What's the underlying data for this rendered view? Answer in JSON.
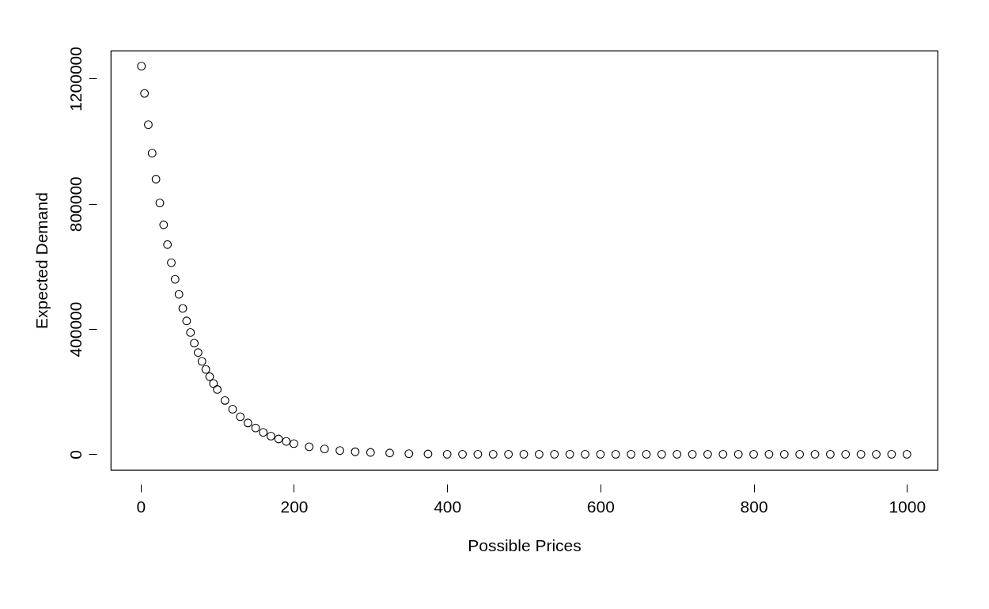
{
  "chart_data": {
    "type": "scatter",
    "xlabel": "Possible Prices",
    "ylabel": "Expected Demand",
    "marker": "circle",
    "grid": false,
    "xlim": [
      -39,
      1040
    ],
    "ylim": [
      -49600,
      1289600
    ],
    "xticks": [
      0,
      200,
      400,
      600,
      800,
      1000
    ],
    "yticks": [
      0,
      400000,
      800000,
      1200000
    ],
    "series": [
      {
        "color": "#000000",
        "x": [
          1,
          5,
          10,
          15,
          20,
          25,
          30,
          35,
          40,
          45,
          50,
          55,
          60,
          65,
          70,
          75,
          80,
          85,
          90,
          95,
          100,
          110,
          120,
          130,
          140,
          150,
          160,
          170,
          180,
          190,
          200,
          220,
          240,
          260,
          280,
          300,
          325,
          350,
          375,
          400,
          420,
          440,
          460,
          480,
          500,
          520,
          540,
          560,
          580,
          600,
          620,
          640,
          660,
          680,
          700,
          720,
          740,
          760,
          780,
          800,
          820,
          840,
          860,
          880,
          900,
          920,
          940,
          960,
          980,
          1000
        ],
        "values": [
          1240000,
          1153000,
          1053000,
          962000,
          879000,
          803000,
          733000,
          670000,
          612000,
          559000,
          511000,
          466000,
          426000,
          389000,
          355000,
          325000,
          297000,
          271000,
          248000,
          226000,
          207000,
          172000,
          144000,
          120000,
          100000,
          84000,
          70000,
          58000,
          49000,
          41000,
          34000,
          24000,
          17000,
          12000,
          8000,
          6000,
          4000,
          2000,
          1000,
          0,
          0,
          0,
          0,
          0,
          0,
          0,
          0,
          0,
          0,
          0,
          0,
          0,
          0,
          0,
          0,
          0,
          0,
          0,
          0,
          0,
          0,
          0,
          0,
          0,
          0,
          0,
          0,
          0,
          0,
          0
        ]
      }
    ]
  }
}
